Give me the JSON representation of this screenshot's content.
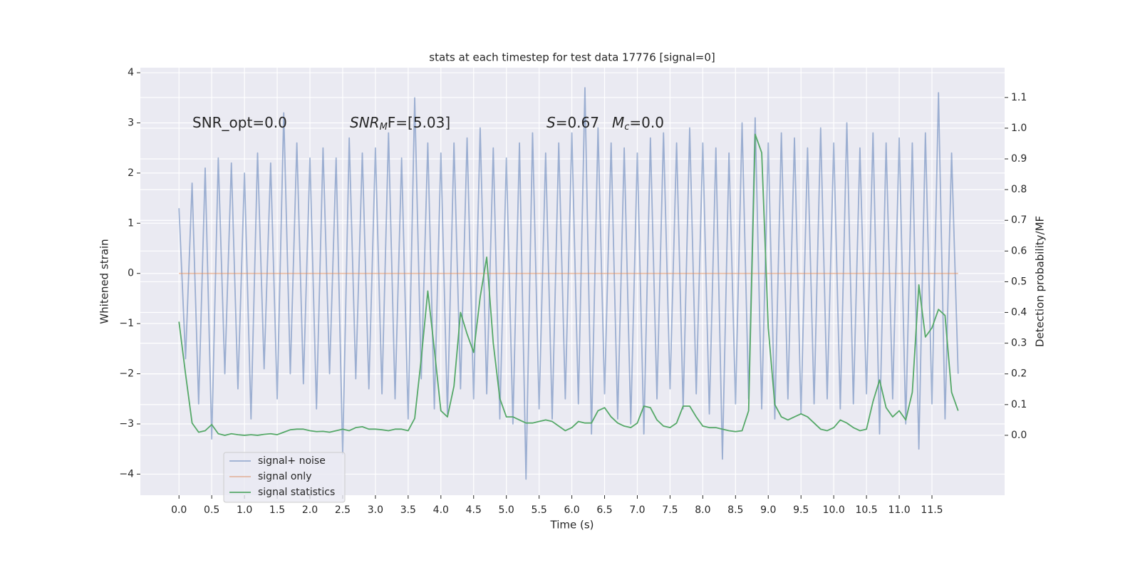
{
  "chart_data": {
    "type": "line",
    "title": "stats at each timestep for test data 17776 [signal=0]",
    "xlabel": "Time (s)",
    "ylabel": "Whitened strain",
    "y2label": "Detection probability/MF",
    "annotations": [
      {
        "parts": [
          {
            "text": "SNR_opt=0.0",
            "style": "normal"
          }
        ]
      },
      {
        "parts": [
          {
            "text": "SNR",
            "style": "italic"
          },
          {
            "text": "M",
            "style": "sub"
          },
          {
            "text": "F=[5.03]",
            "style": "normal"
          }
        ]
      },
      {
        "parts": [
          {
            "text": "S",
            "style": "italic"
          },
          {
            "text": "=0.67",
            "style": "normal"
          },
          {
            "text": "M",
            "style": "italic"
          },
          {
            "text": "c",
            "style": "sub"
          },
          {
            "text": "=0.0",
            "style": "normal"
          }
        ]
      }
    ],
    "x": [
      0,
      0.1,
      0.2,
      0.3,
      0.4,
      0.5,
      0.6,
      0.7,
      0.8,
      0.9,
      1,
      1.1,
      1.2,
      1.3,
      1.4,
      1.5,
      1.6,
      1.7,
      1.8,
      1.9,
      2,
      2.1,
      2.2,
      2.3,
      2.4,
      2.5,
      2.6,
      2.7,
      2.8,
      2.9,
      3,
      3.1,
      3.2,
      3.3,
      3.4,
      3.5,
      3.6,
      3.7,
      3.8,
      3.9,
      4,
      4.1,
      4.2,
      4.3,
      4.4,
      4.5,
      4.6,
      4.7,
      4.8,
      4.9,
      5,
      5.1,
      5.2,
      5.3,
      5.4,
      5.5,
      5.6,
      5.7,
      5.8,
      5.9,
      6,
      6.1,
      6.2,
      6.3,
      6.4,
      6.5,
      6.6,
      6.7,
      6.8,
      6.9,
      7,
      7.1,
      7.2,
      7.3,
      7.4,
      7.5,
      7.6,
      7.7,
      7.8,
      7.9,
      8,
      8.1,
      8.2,
      8.3,
      8.4,
      8.5,
      8.6,
      8.7,
      8.8,
      8.9,
      9,
      9.1,
      9.2,
      9.3,
      9.4,
      9.5,
      9.6,
      9.7,
      9.8,
      9.9,
      10,
      10.1,
      10.2,
      10.3,
      10.4,
      10.5,
      10.6,
      10.7,
      10.8,
      10.9,
      11,
      11.1,
      11.2,
      11.3,
      11.4,
      11.5,
      11.6,
      11.7,
      11.8,
      11.9
    ],
    "series": [
      {
        "name": "signal+ noise",
        "color": "#4c72b0",
        "opacity": 0.5,
        "values": [
          1.3,
          -1.7,
          1.8,
          -2.6,
          2.1,
          -3.3,
          2.3,
          -2.0,
          2.2,
          -2.3,
          2.0,
          -2.9,
          2.4,
          -1.9,
          2.2,
          -2.5,
          3.2,
          -2.0,
          2.6,
          -2.2,
          2.3,
          -2.7,
          2.5,
          -2.0,
          2.3,
          -3.6,
          2.7,
          -2.1,
          2.4,
          -2.3,
          2.5,
          -2.4,
          2.8,
          -2.5,
          2.3,
          -2.9,
          3.5,
          -2.1,
          2.6,
          -2.7,
          2.4,
          -2.8,
          2.6,
          -2.3,
          2.7,
          -2.5,
          2.9,
          -2.4,
          2.5,
          -2.9,
          2.3,
          -3.0,
          2.6,
          -4.1,
          2.8,
          -2.7,
          2.4,
          -2.9,
          2.6,
          -2.5,
          2.8,
          -2.6,
          3.7,
          -3.2,
          2.9,
          -2.4,
          2.6,
          -2.9,
          2.5,
          -3.0,
          2.4,
          -3.2,
          2.7,
          -2.5,
          2.8,
          -2.3,
          2.6,
          -2.7,
          2.9,
          -2.4,
          2.6,
          -2.8,
          2.5,
          -3.7,
          2.4,
          -2.6,
          3.0,
          -2.5,
          3.1,
          -2.7,
          2.6,
          -2.9,
          2.8,
          -2.5,
          2.7,
          -2.8,
          2.5,
          -2.6,
          2.9,
          -2.5,
          2.6,
          -2.7,
          3.0,
          -2.6,
          2.5,
          -2.4,
          2.8,
          -3.2,
          2.6,
          -2.5,
          2.7,
          -3.0,
          2.6,
          -3.5,
          2.8,
          -2.6,
          3.6,
          -2.9,
          2.4,
          -2.0
        ]
      },
      {
        "name": "signal only",
        "color": "#dd8452",
        "opacity": 0.5,
        "values": [
          0,
          0,
          0,
          0,
          0,
          0,
          0,
          0,
          0,
          0,
          0,
          0,
          0,
          0,
          0,
          0,
          0,
          0,
          0,
          0,
          0,
          0,
          0,
          0,
          0,
          0,
          0,
          0,
          0,
          0,
          0,
          0,
          0,
          0,
          0,
          0,
          0,
          0,
          0,
          0,
          0,
          0,
          0,
          0,
          0,
          0,
          0,
          0,
          0,
          0,
          0,
          0,
          0,
          0,
          0,
          0,
          0,
          0,
          0,
          0,
          0,
          0,
          0,
          0,
          0,
          0,
          0,
          0,
          0,
          0,
          0,
          0,
          0,
          0,
          0,
          0,
          0,
          0,
          0,
          0,
          0,
          0,
          0,
          0,
          0,
          0,
          0,
          0,
          0,
          0,
          0,
          0,
          0,
          0,
          0,
          0,
          0,
          0,
          0,
          0,
          0,
          0,
          0,
          0,
          0,
          0,
          0,
          0,
          0,
          0,
          0,
          0,
          0,
          0,
          0,
          0,
          0,
          0,
          0,
          0
        ]
      },
      {
        "name": "signal statistics",
        "color": "#55a868",
        "opacity": 1,
        "axis": "y2",
        "values": [
          0.37,
          0.2,
          0.04,
          0.01,
          0.015,
          0.035,
          0.005,
          0.0,
          0.005,
          0.002,
          0.0,
          0.002,
          0.0,
          0.003,
          0.005,
          0.002,
          0.01,
          0.018,
          0.02,
          0.02,
          0.015,
          0.012,
          0.013,
          0.01,
          0.015,
          0.02,
          0.015,
          0.025,
          0.028,
          0.02,
          0.02,
          0.018,
          0.015,
          0.02,
          0.02,
          0.015,
          0.055,
          0.25,
          0.47,
          0.28,
          0.08,
          0.06,
          0.16,
          0.4,
          0.33,
          0.27,
          0.45,
          0.58,
          0.3,
          0.12,
          0.06,
          0.06,
          0.05,
          0.04,
          0.04,
          0.045,
          0.05,
          0.045,
          0.03,
          0.015,
          0.025,
          0.045,
          0.04,
          0.04,
          0.08,
          0.09,
          0.06,
          0.04,
          0.03,
          0.025,
          0.04,
          0.095,
          0.09,
          0.05,
          0.03,
          0.025,
          0.04,
          0.095,
          0.095,
          0.06,
          0.03,
          0.025,
          0.025,
          0.02,
          0.015,
          0.012,
          0.015,
          0.08,
          0.98,
          0.92,
          0.35,
          0.1,
          0.06,
          0.05,
          0.06,
          0.07,
          0.06,
          0.04,
          0.02,
          0.015,
          0.025,
          0.05,
          0.04,
          0.025,
          0.015,
          0.02,
          0.11,
          0.18,
          0.09,
          0.06,
          0.08,
          0.05,
          0.14,
          0.49,
          0.32,
          0.35,
          0.41,
          0.39,
          0.14,
          0.08
        ]
      }
    ],
    "xlim": [
      -0.59,
      12.61
    ],
    "xticks": [
      {
        "value": 0,
        "label": "0.0"
      },
      {
        "value": 0.5,
        "label": "0.5"
      },
      {
        "value": 1,
        "label": "1.0"
      },
      {
        "value": 1.5,
        "label": "1.5"
      },
      {
        "value": 2,
        "label": "2.0"
      },
      {
        "value": 2.5,
        "label": "2.5"
      },
      {
        "value": 3,
        "label": "3.0"
      },
      {
        "value": 3.5,
        "label": "3.5"
      },
      {
        "value": 4,
        "label": "4.0"
      },
      {
        "value": 4.5,
        "label": "4.5"
      },
      {
        "value": 5,
        "label": "5.0"
      },
      {
        "value": 5.5,
        "label": "5.5"
      },
      {
        "value": 6,
        "label": "6.0"
      },
      {
        "value": 6.5,
        "label": "6.5"
      },
      {
        "value": 7,
        "label": "7.0"
      },
      {
        "value": 7.5,
        "label": "7.5"
      },
      {
        "value": 8,
        "label": "8.0"
      },
      {
        "value": 8.5,
        "label": "8.5"
      },
      {
        "value": 9,
        "label": "9.0"
      },
      {
        "value": 9.5,
        "label": "9.5"
      },
      {
        "value": 10,
        "label": "10.0"
      },
      {
        "value": 10.5,
        "label": "10.5"
      },
      {
        "value": 11,
        "label": "11.0"
      },
      {
        "value": 11.5,
        "label": "11.5"
      }
    ],
    "ylim": [
      -4.42,
      4.1
    ],
    "yticks": [
      {
        "value": -4,
        "label": "−4"
      },
      {
        "value": -3,
        "label": "−3"
      },
      {
        "value": -2,
        "label": "−2"
      },
      {
        "value": -1,
        "label": "−1"
      },
      0,
      1,
      2,
      3,
      4
    ],
    "y2lim": [
      -0.195,
      1.197
    ],
    "y2ticks": [
      {
        "value": 0,
        "label": "0.0"
      },
      {
        "value": 0.1,
        "label": "0.1"
      },
      {
        "value": 0.2,
        "label": "0.2"
      },
      {
        "value": 0.3,
        "label": "0.3"
      },
      {
        "value": 0.4,
        "label": "0.4"
      },
      {
        "value": 0.5,
        "label": "0.5"
      },
      {
        "value": 0.6,
        "label": "0.6"
      },
      {
        "value": 0.7,
        "label": "0.7"
      },
      {
        "value": 0.8,
        "label": "0.8"
      },
      {
        "value": 0.9,
        "label": "0.9"
      },
      {
        "value": 1,
        "label": "1.0"
      },
      {
        "value": 1.1,
        "label": "1.1"
      }
    ],
    "grid": true,
    "legend": "lower left"
  }
}
